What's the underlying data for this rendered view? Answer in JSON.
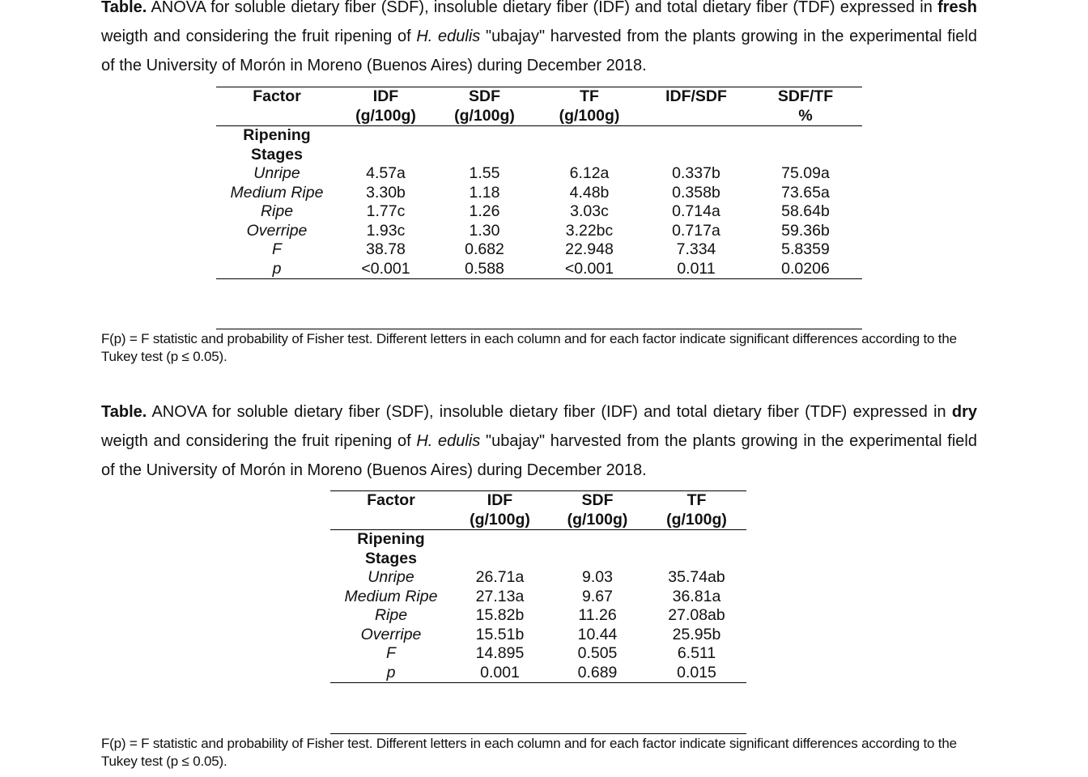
{
  "table1": {
    "caption_lead": "Table.",
    "caption_part1": " ANOVA for soluble dietary fiber (SDF), insoluble dietary fiber (IDF) and total dietary fiber (TDF) expressed in ",
    "caption_basis": "fresh",
    "caption_part2": " weigth and considering the fruit ripening of ",
    "caption_species": "H. edulis",
    "caption_part3": " \"ubajay\" harvested from the plants growing in the experimental field of the University of Morón in Moreno (Buenos Aires) during December 2018.",
    "headers": [
      {
        "line1": "Factor",
        "line2": ""
      },
      {
        "line1": "IDF",
        "line2": "(g/100g)"
      },
      {
        "line1": "SDF",
        "line2": "(g/100g)"
      },
      {
        "line1": "TF",
        "line2": "(g/100g)"
      },
      {
        "line1": "IDF/SDF",
        "line2": ""
      },
      {
        "line1": "SDF/TF",
        "line2": "%"
      }
    ],
    "group_label_1": "Ripening",
    "group_label_2": "Stages",
    "rows": [
      {
        "factor": "Unripe",
        "values": [
          "4.57a",
          "1.55",
          "6.12a",
          "0.337b",
          "75.09a"
        ]
      },
      {
        "factor": "Medium Ripe",
        "values": [
          "3.30b",
          "1.18",
          "4.48b",
          "0.358b",
          "73.65a"
        ]
      },
      {
        "factor": "Ripe",
        "values": [
          "1.77c",
          "1.26",
          "3.03c",
          "0.714a",
          "58.64b"
        ]
      },
      {
        "factor": "Overripe",
        "values": [
          "1.93c",
          "1.30",
          "3.22bc",
          "0.717a",
          "59.36b"
        ]
      },
      {
        "factor": "F",
        "values": [
          "38.78",
          "0.682",
          "22.948",
          "7.334",
          "5.8359"
        ]
      },
      {
        "factor": "p",
        "values": [
          "<0.001",
          "0.588",
          "<0.001",
          "0.011",
          "0.0206"
        ]
      }
    ],
    "note": "F(p) = F statistic and probability of Fisher test. Different letters in each column and for each factor indicate significant differences according to the Tukey test (p ≤ 0.05)."
  },
  "table2": {
    "caption_lead": "Table.",
    "caption_part1": " ANOVA for soluble dietary fiber (SDF), insoluble dietary fiber (IDF) and total dietary fiber (TDF) expressed in ",
    "caption_basis": "dry",
    "caption_part2": " weigth and considering the fruit ripening of ",
    "caption_species": "H. edulis",
    "caption_part3": " \"ubajay\" harvested from the plants growing in the experimental field of the University of Morón in Moreno (Buenos Aires) during December 2018.",
    "headers": [
      {
        "line1": "Factor",
        "line2": ""
      },
      {
        "line1": "IDF",
        "line2": "(g/100g)"
      },
      {
        "line1": "SDF",
        "line2": "(g/100g)"
      },
      {
        "line1": "TF",
        "line2": "(g/100g)"
      }
    ],
    "group_label_1": "Ripening",
    "group_label_2": "Stages",
    "rows": [
      {
        "factor": "Unripe",
        "values": [
          "26.71a",
          "9.03",
          "35.74ab"
        ]
      },
      {
        "factor": "Medium Ripe",
        "values": [
          "27.13a",
          "9.67",
          "36.81a"
        ]
      },
      {
        "factor": "Ripe",
        "values": [
          "15.82b",
          "11.26",
          "27.08ab"
        ]
      },
      {
        "factor": "Overripe",
        "values": [
          "15.51b",
          "10.44",
          "25.95b"
        ]
      },
      {
        "factor": "F",
        "values": [
          "14.895",
          "0.505",
          "6.511"
        ]
      },
      {
        "factor": "p",
        "values": [
          "0.001",
          "0.689",
          "0.015"
        ]
      }
    ],
    "note": "F(p) = F statistic and probability of Fisher test. Different letters in each column and for each factor indicate significant differences according to the Tukey test (p ≤ 0.05)."
  }
}
